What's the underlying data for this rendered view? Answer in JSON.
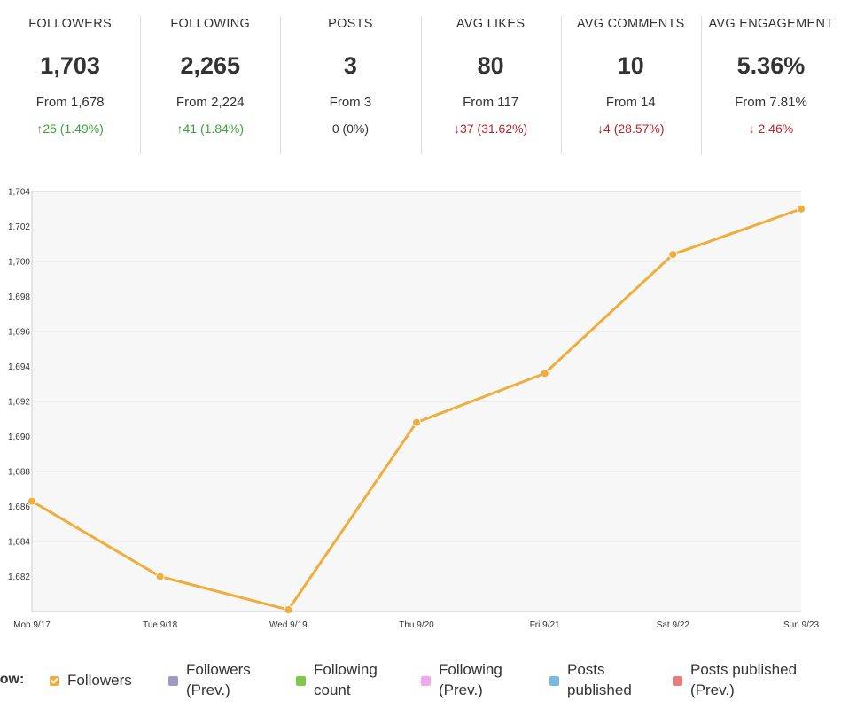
{
  "stats": [
    {
      "label": "FOLLOWERS",
      "value": "1,703",
      "from": "From 1,678",
      "change": "↑25 (1.49%)",
      "trend": "up"
    },
    {
      "label": "FOLLOWING",
      "value": "2,265",
      "from": "From 2,224",
      "change": "↑41 (1.84%)",
      "trend": "up"
    },
    {
      "label": "POSTS",
      "value": "3",
      "from": "From 3",
      "change": "0 (0%)",
      "trend": "neutral"
    },
    {
      "label": "AVG LIKES",
      "value": "80",
      "from": "From 117",
      "change": "↓37 (31.62%)",
      "trend": "down"
    },
    {
      "label": "AVG COMMENTS",
      "value": "10",
      "from": "From 14",
      "change": "↓4 (28.57%)",
      "trend": "down"
    },
    {
      "label": "AVG ENGAGEMENT",
      "value": "5.36%",
      "from": "From 7.81%",
      "change": "↓ 2.46%",
      "trend": "down"
    }
  ],
  "chart_data": {
    "type": "line",
    "categories": [
      "Mon 9/17",
      "Tue 9/18",
      "Wed 9/19",
      "Thu 9/20",
      "Fri 9/21",
      "Sat 9/22",
      "Sun 9/23"
    ],
    "series": [
      {
        "name": "Followers",
        "color": "#f0ad3c",
        "values": [
          1686.3,
          1682.0,
          1680.1,
          1690.8,
          1693.6,
          1700.4,
          1703.0
        ]
      }
    ],
    "yticks": [
      "1,682",
      "1,684",
      "1,686",
      "1,688",
      "1,690",
      "1,692",
      "1,694",
      "1,696",
      "1,698",
      "1,700",
      "1,702",
      "1,704"
    ],
    "ylim": [
      1680,
      1704
    ],
    "grid": true
  },
  "legend": {
    "show_label": "how:",
    "items": [
      {
        "label": "Followers",
        "color": "#f0ad3c",
        "checked": true
      },
      {
        "label": "Followers (Prev.)",
        "color": "#9f9ac8",
        "checked": false
      },
      {
        "label": "Following count",
        "color": "#7cc84a",
        "checked": false
      },
      {
        "label": "Following (Prev.)",
        "color": "#f0a8e8",
        "checked": false
      },
      {
        "label": "Posts published",
        "color": "#7ab8e4",
        "checked": false
      },
      {
        "label": "Posts published (Prev.)",
        "color": "#e87c7c",
        "checked": false
      }
    ]
  }
}
